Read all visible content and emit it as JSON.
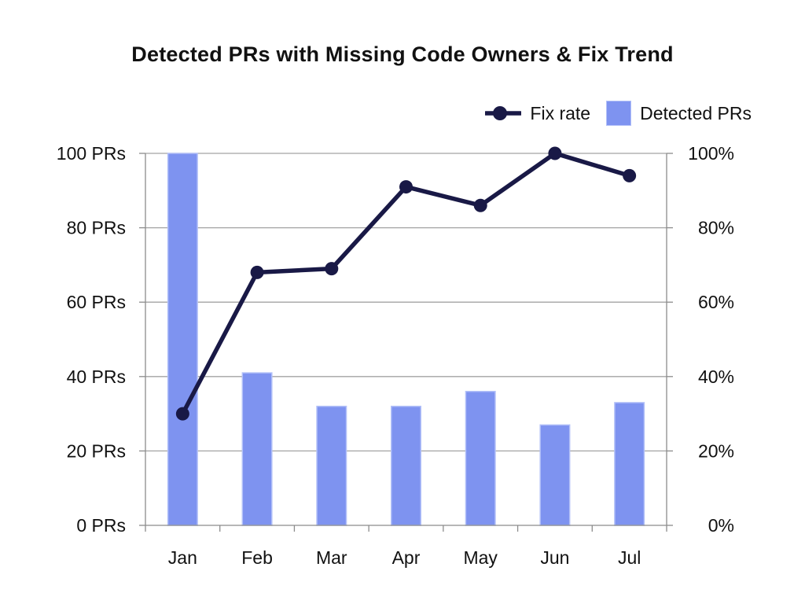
{
  "chart": {
    "title": "Detected PRs with Missing Code Owners & Fix Trend",
    "legend": {
      "line_label": "Fix rate",
      "bar_label": "Detected PRs"
    }
  },
  "chart_data": {
    "type": "bar",
    "subtype": "dual-axis bar + line combo",
    "title": "Detected PRs with Missing Code Owners & Fix Trend",
    "categories": [
      "Jan",
      "Feb",
      "Mar",
      "Apr",
      "May",
      "Jun",
      "Jul"
    ],
    "series": [
      {
        "name": "Detected PRs",
        "type": "bar",
        "axis": "left",
        "values": [
          100,
          41,
          32,
          32,
          36,
          27,
          33
        ]
      },
      {
        "name": "Fix rate",
        "type": "line",
        "axis": "right",
        "values": [
          30,
          68,
          69,
          91,
          86,
          100,
          94
        ]
      }
    ],
    "left_axis": {
      "ticks": [
        0,
        20,
        40,
        60,
        80,
        100
      ],
      "labels": [
        "0 PRs",
        "20 PRs",
        "40 PRs",
        "60 PRs",
        "80 PRs",
        "100 PRs"
      ],
      "range": [
        0,
        100
      ]
    },
    "right_axis": {
      "ticks": [
        0,
        20,
        40,
        60,
        80,
        100
      ],
      "labels": [
        "0%",
        "20%",
        "40%",
        "60%",
        "80%",
        "100%"
      ],
      "range": [
        0,
        100
      ]
    },
    "x_axis": {
      "labels": [
        "Jan",
        "Feb",
        "Mar",
        "Apr",
        "May",
        "Jun",
        "Jul"
      ]
    },
    "grid": true,
    "legend_position": "top-right",
    "colors": {
      "bar": "#7e93f0",
      "bar_border": "#b2c0f8",
      "line": "#191946",
      "grid": "#a3a3a3",
      "axis": "#8c8c8c",
      "text": "#111111"
    }
  }
}
